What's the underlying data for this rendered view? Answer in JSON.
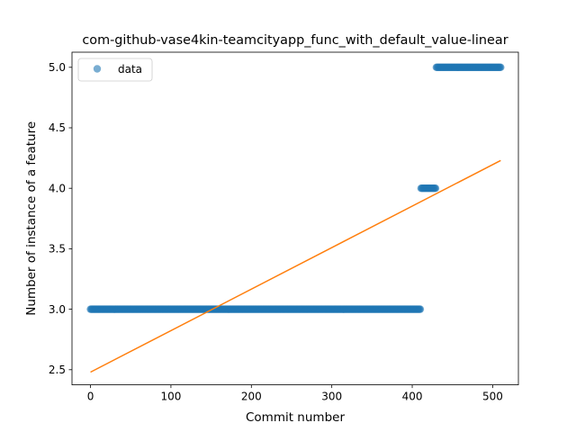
{
  "chart_data": {
    "type": "scatter",
    "title": "com-github-vase4kin-teamcityapp_func_with_default_value-linear",
    "xlabel": "Commit number",
    "ylabel": "Number of instance of a feature",
    "xlim": [
      -23,
      532
    ],
    "ylim": [
      2.375,
      5.125
    ],
    "xticks": [
      0,
      100,
      200,
      300,
      400,
      500
    ],
    "yticks": [
      2.5,
      3.0,
      3.5,
      4.0,
      4.5,
      5.0
    ],
    "xtick_labels": [
      "0",
      "100",
      "200",
      "300",
      "400",
      "500"
    ],
    "ytick_labels": [
      "2.5",
      "3.0",
      "3.5",
      "4.0",
      "4.5",
      "5.0"
    ],
    "legend": {
      "position": "upper-left",
      "entries": [
        "data"
      ]
    },
    "grid": false,
    "series": [
      {
        "name": "data",
        "kind": "scatter",
        "color": "#1f77b4",
        "runs": [
          {
            "x_start": 0,
            "x_end": 410,
            "y": 3
          },
          {
            "x_start": 411,
            "x_end": 429,
            "y": 4
          },
          {
            "x_start": 430,
            "x_end": 510,
            "y": 5
          }
        ]
      },
      {
        "kind": "line",
        "color": "#ff7f0e",
        "x": [
          0,
          510
        ],
        "y": [
          2.48,
          4.23
        ]
      }
    ]
  }
}
